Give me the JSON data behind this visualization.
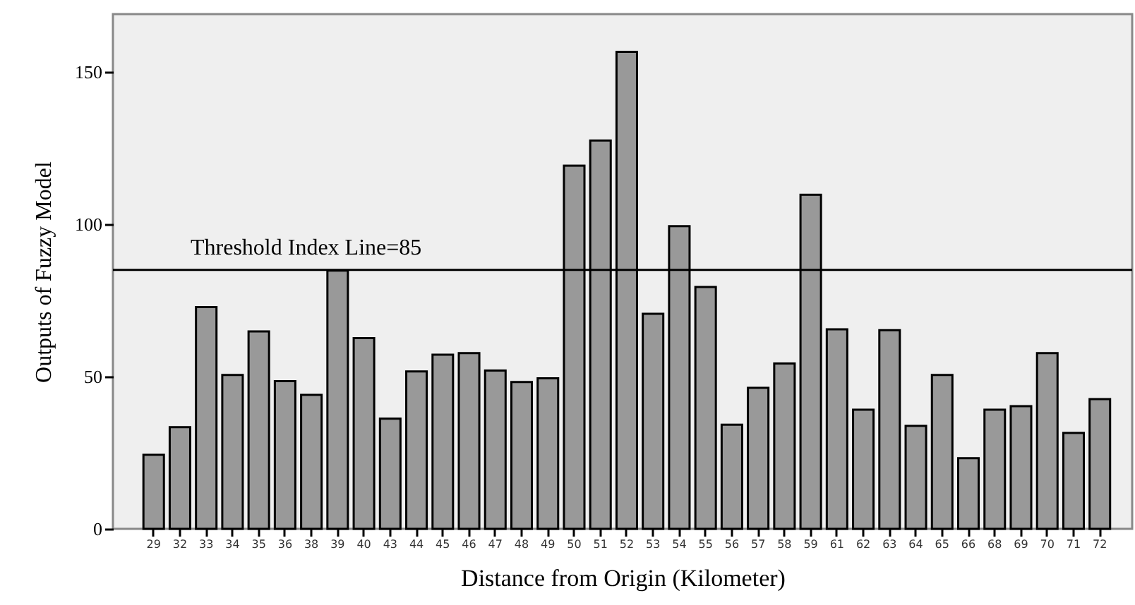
{
  "chart_data": {
    "type": "bar",
    "xlabel": "Distance from Origin (Kilometer)",
    "ylabel": "Outputs of Fuzzy Model",
    "categories": [
      "29",
      "32",
      "33",
      "34",
      "35",
      "36",
      "38",
      "39",
      "40",
      "43",
      "44",
      "45",
      "46",
      "47",
      "48",
      "49",
      "50",
      "51",
      "52",
      "53",
      "54",
      "55",
      "56",
      "57",
      "58",
      "59",
      "61",
      "62",
      "63",
      "64",
      "65",
      "66",
      "68",
      "69",
      "70",
      "71",
      "72"
    ],
    "values": [
      24.3,
      33.4,
      72.8,
      50.5,
      64.8,
      48.5,
      44,
      84.8,
      62.6,
      36.2,
      51.7,
      57.2,
      57.7,
      52,
      48.2,
      49.4,
      119.2,
      127.5,
      156.6,
      70.6,
      99.4,
      79.4,
      34.2,
      46.3,
      54.3,
      109.7,
      65.5,
      39.1,
      65.2,
      33.8,
      50.5,
      23.2,
      39.1,
      40.3,
      57.7,
      31.5,
      42.6
    ],
    "color": "#999999",
    "ylim": [
      0,
      169
    ],
    "yticks": [
      0,
      50,
      100,
      150
    ],
    "ref_lines": [
      {
        "axis": "y",
        "value": 85,
        "label": "Threshold Index Line=85",
        "color": "#000000"
      }
    ],
    "grid": false
  }
}
